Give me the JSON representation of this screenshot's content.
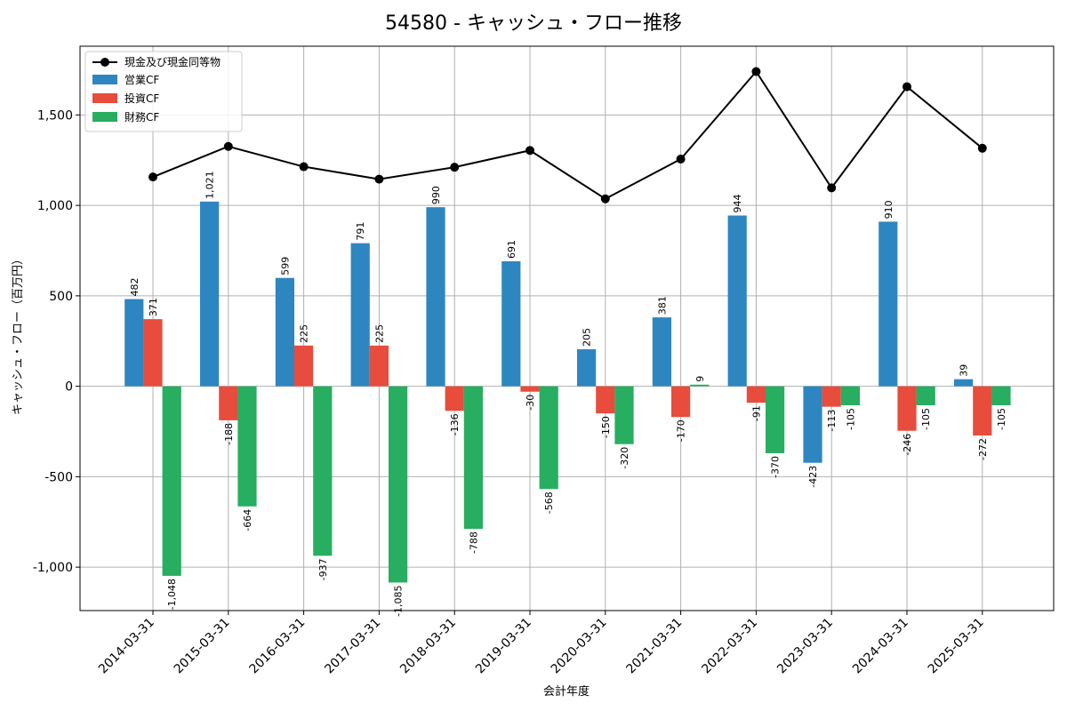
{
  "chart_data": {
    "type": "bar",
    "title": "54580 - キャッシュ・フロー推移",
    "xlabel": "会計年度",
    "ylabel": "キャッシュ・フロー（百万円）",
    "ylim": [
      -1240,
      1880
    ],
    "yticks": [
      -1000,
      -500,
      0,
      500,
      1000,
      1500
    ],
    "ytick_labels": [
      "-1,000",
      "-500",
      "0",
      "500",
      "1,000",
      "1,500"
    ],
    "grid": true,
    "legend_position": "top-left",
    "categories": [
      "2014-03-31",
      "2015-03-31",
      "2016-03-31",
      "2017-03-31",
      "2018-03-31",
      "2019-03-31",
      "2020-03-31",
      "2021-03-31",
      "2022-03-31",
      "2023-03-31",
      "2024-03-31",
      "2025-03-31"
    ],
    "line_series": {
      "name": "現金及び現金同等物",
      "color": "#000000",
      "values": [
        1157,
        1326,
        1214,
        1145,
        1211,
        1304,
        1036,
        1256,
        1740,
        1097,
        1656,
        1316
      ]
    },
    "series": [
      {
        "name": "営業CF",
        "color": "#2e86c1",
        "values": [
          482,
          1021,
          599,
          791,
          990,
          691,
          205,
          381,
          944,
          -423,
          910,
          39
        ],
        "labels": [
          "482",
          "1,021",
          "599",
          "791",
          "990",
          "691",
          "205",
          "381",
          "944",
          "-423",
          "910",
          "39"
        ]
      },
      {
        "name": "投資CF",
        "color": "#e74c3c",
        "values": [
          371,
          -188,
          225,
          225,
          -136,
          -30,
          -150,
          -170,
          -91,
          -113,
          -246,
          -272
        ],
        "labels": [
          "371",
          "-188",
          "225",
          "225",
          "-136",
          "-30",
          "-150",
          "-170",
          "-91",
          "-113",
          "-246",
          "-272"
        ]
      },
      {
        "name": "財務CF",
        "color": "#27ae60",
        "values": [
          -1048,
          -664,
          -937,
          -1085,
          -788,
          -568,
          -320,
          9,
          -370,
          -105,
          -105,
          -105
        ],
        "labels": [
          "-1,048",
          "-664",
          "-937",
          "-1,085",
          "-788",
          "-568",
          "-320",
          "9",
          "-370",
          "-105",
          "-105",
          "-105"
        ]
      }
    ]
  }
}
